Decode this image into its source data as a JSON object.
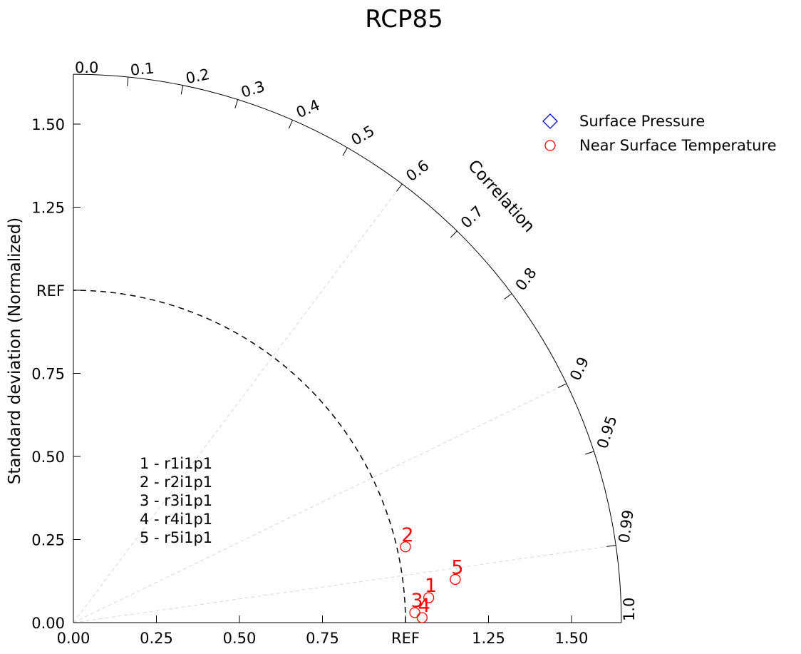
{
  "chart_data": {
    "type": "scatter",
    "subtype": "taylor-diagram",
    "title": "RCP85",
    "ylabel": "Standard deviation (Normalized)",
    "correlation_label": "Correlation",
    "std_range": [
      0,
      1.65
    ],
    "std_ticks": [
      {
        "value": 0.0,
        "label": "0.00"
      },
      {
        "value": 0.25,
        "label": "0.25"
      },
      {
        "value": 0.5,
        "label": "0.50"
      },
      {
        "value": 0.75,
        "label": "0.75"
      },
      {
        "value": 1.0,
        "label": "REF"
      },
      {
        "value": 1.25,
        "label": "1.25"
      },
      {
        "value": 1.5,
        "label": "1.50"
      }
    ],
    "correlation_ticks": [
      {
        "value": 0.0,
        "label": "0.0"
      },
      {
        "value": 0.1,
        "label": "0.1"
      },
      {
        "value": 0.2,
        "label": "0.2"
      },
      {
        "value": 0.3,
        "label": "0.3"
      },
      {
        "value": 0.4,
        "label": "0.4"
      },
      {
        "value": 0.5,
        "label": "0.5"
      },
      {
        "value": 0.6,
        "label": "0.6"
      },
      {
        "value": 0.7,
        "label": "0.7"
      },
      {
        "value": 0.8,
        "label": "0.8"
      },
      {
        "value": 0.9,
        "label": "0.9"
      },
      {
        "value": 0.95,
        "label": "0.95"
      },
      {
        "value": 0.99,
        "label": "0.99"
      },
      {
        "value": 1.0,
        "label": "1.0"
      }
    ],
    "correlation_gridlines": [
      0.6,
      0.9,
      0.99
    ],
    "reference": {
      "std": 1.0,
      "label": "REF"
    },
    "legend": {
      "placement": "top-right",
      "entries": [
        {
          "label": "Surface Pressure",
          "marker": "diamond",
          "color": "#0000cc"
        },
        {
          "label": "Near Surface Temperature",
          "marker": "circle",
          "color": "#ff0000"
        }
      ]
    },
    "series": [
      {
        "name": "Surface Pressure",
        "marker": "diamond",
        "color": "#0000cc",
        "points": []
      },
      {
        "name": "Near Surface Temperature",
        "marker": "circle",
        "color": "#ff0000",
        "points": [
          {
            "label": "1",
            "x": 1.07,
            "y": 0.075
          },
          {
            "label": "2",
            "x": 1.0,
            "y": 0.228
          },
          {
            "label": "3",
            "x": 1.028,
            "y": 0.03
          },
          {
            "label": "4",
            "x": 1.05,
            "y": 0.015
          },
          {
            "label": "5",
            "x": 1.15,
            "y": 0.13
          }
        ]
      }
    ],
    "annotations": [
      "1 - r1i1p1",
      "2 - r2i1p1",
      "3 - r3i1p1",
      "4 - r4i1p1",
      "5 - r5i1p1"
    ]
  }
}
